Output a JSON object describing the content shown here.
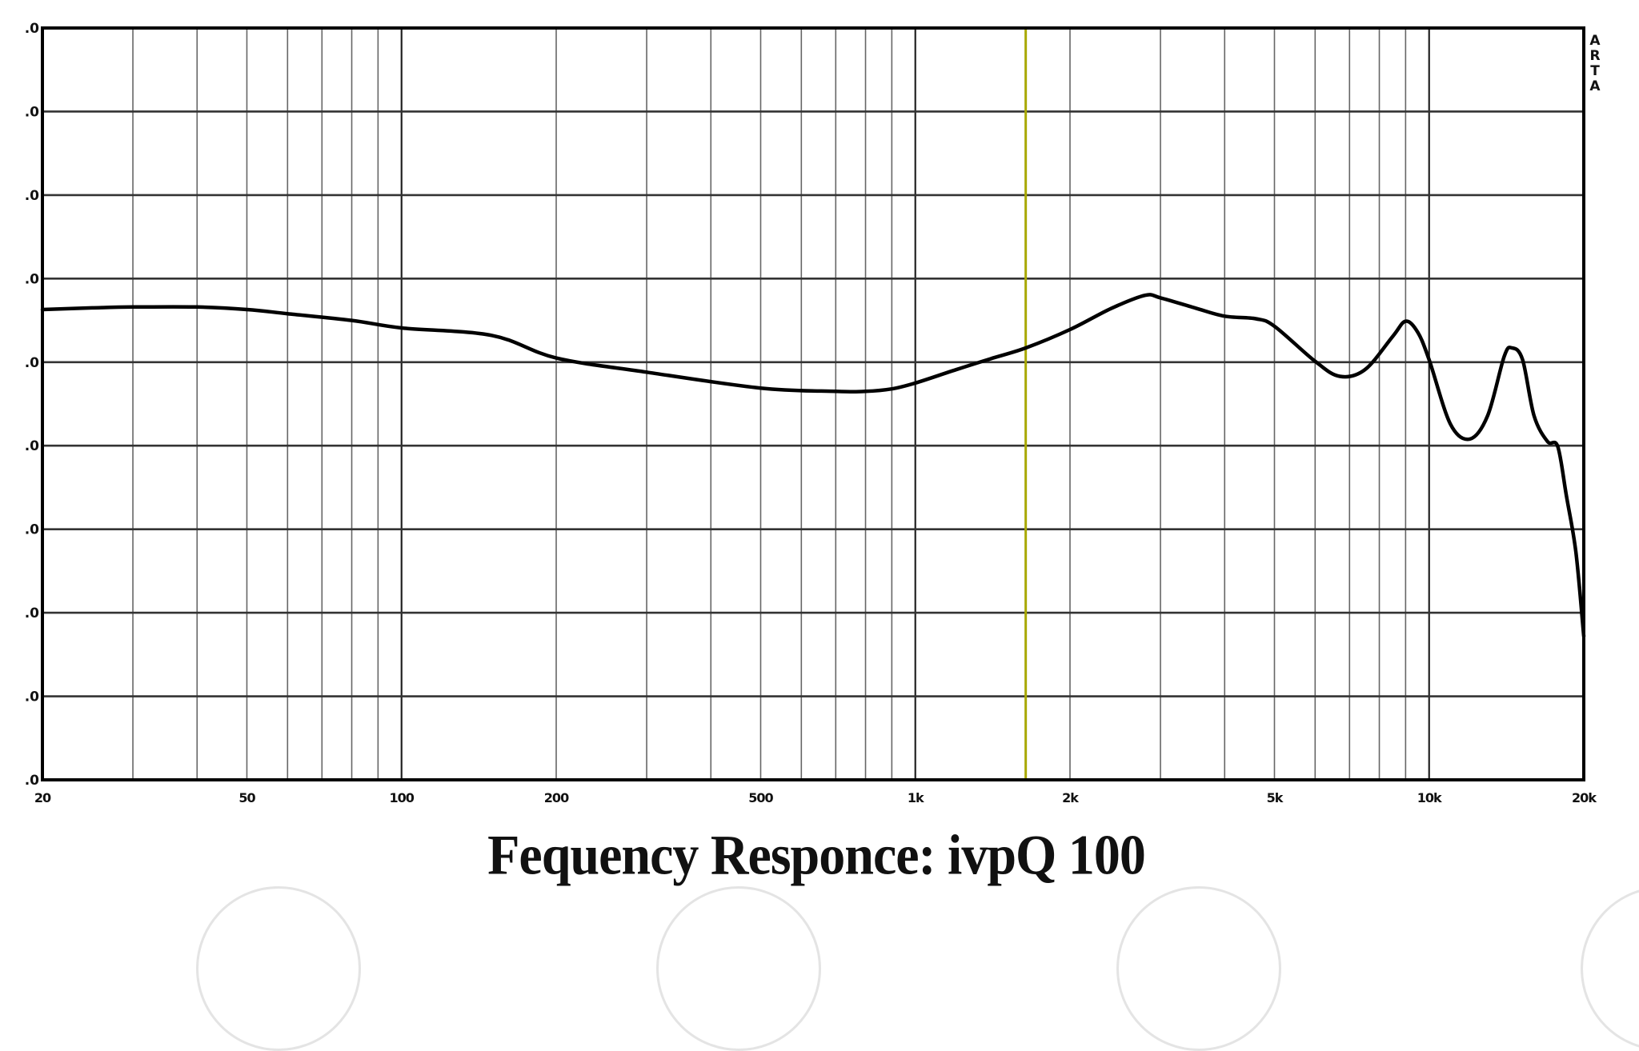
{
  "chart_data": {
    "type": "line",
    "title": "Fequency Responce: ivpQ 100",
    "xlabel": "",
    "ylabel": "",
    "x_scale": "log",
    "xlim": [
      20,
      20000
    ],
    "x_ticks": [
      {
        "value": 20,
        "label": "20"
      },
      {
        "value": 50,
        "label": "50"
      },
      {
        "value": 100,
        "label": "100"
      },
      {
        "value": 200,
        "label": "200"
      },
      {
        "value": 500,
        "label": "500"
      },
      {
        "value": 1000,
        "label": "1k"
      },
      {
        "value": 2000,
        "label": "2k"
      },
      {
        "value": 5000,
        "label": "5k"
      },
      {
        "value": 10000,
        "label": "10k"
      },
      {
        "value": 20000,
        "label": "20k"
      }
    ],
    "y_ticks": [
      ".0",
      ".0",
      ".0",
      ".0",
      ".0",
      ".0",
      ".0",
      ".0",
      ".0",
      ".0"
    ],
    "y_units_note": "y values given as gridline index (0 = top gridline, 9 = bottom gridline); numeric dB labels are cropped in the image",
    "grid": true,
    "side_label": "ARTA",
    "marker_line": {
      "frequency": 1640,
      "color": "#a8a800"
    },
    "series": [
      {
        "name": "ivpQ 100",
        "color": "#000000",
        "x": [
          20,
          25,
          30,
          40,
          50,
          60,
          80,
          100,
          150,
          200,
          300,
          500,
          700,
          800,
          900,
          1000,
          1200,
          1400,
          1640,
          2000,
          2400,
          2800,
          3000,
          3500,
          4000,
          4600,
          5000,
          6000,
          6700,
          7500,
          8500,
          9000,
          9500,
          10000,
          11000,
          12000,
          13000,
          14000,
          14500,
          15200,
          16000,
          17000,
          17800,
          18500,
          19300,
          20000
        ],
        "y_gridline_index": [
          3.37,
          3.35,
          3.34,
          3.34,
          3.37,
          3.42,
          3.5,
          3.59,
          3.68,
          3.95,
          4.12,
          4.31,
          4.35,
          4.35,
          4.32,
          4.25,
          4.09,
          3.96,
          3.83,
          3.61,
          3.36,
          3.2,
          3.23,
          3.35,
          3.45,
          3.48,
          3.57,
          3.99,
          4.17,
          4.09,
          3.69,
          3.51,
          3.64,
          3.97,
          4.74,
          4.92,
          4.64,
          3.93,
          3.83,
          3.97,
          4.64,
          4.95,
          5.01,
          5.6,
          6.27,
          7.28
        ]
      }
    ]
  }
}
